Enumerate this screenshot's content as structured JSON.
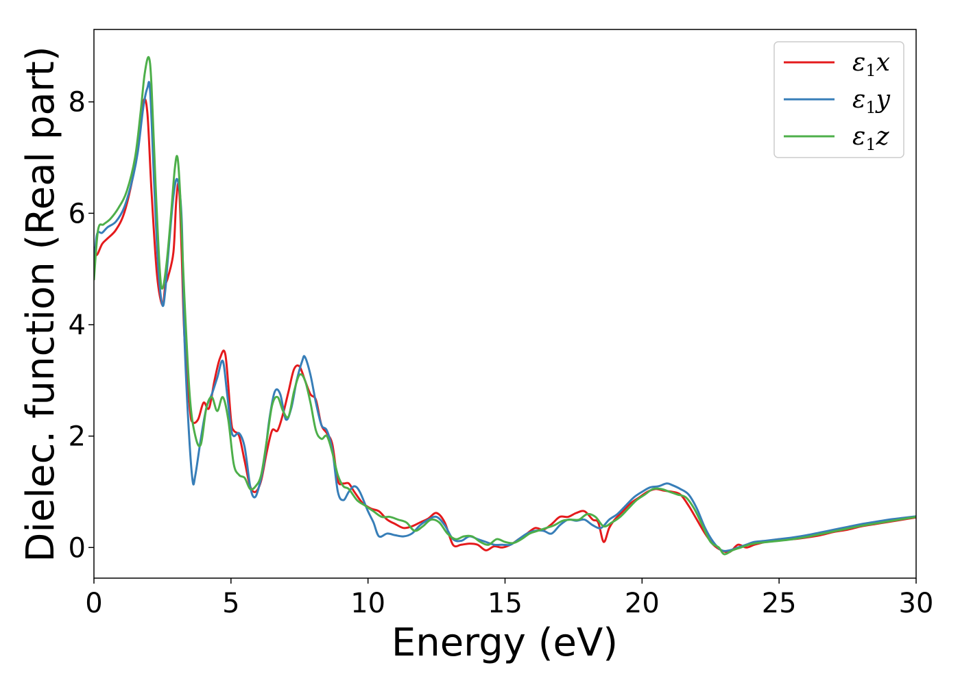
{
  "chart_data": {
    "type": "line",
    "title": "",
    "xlabel": "Energy (eV)",
    "ylabel": "Dielec. function (Real part)",
    "xlim": [
      0,
      30
    ],
    "ylim": [
      -0.55,
      9.3
    ],
    "xticks": [
      0,
      5,
      10,
      15,
      20,
      25,
      30
    ],
    "yticks": [
      0,
      2,
      4,
      6,
      8
    ],
    "grid": false,
    "legend_position": "top-right",
    "series": [
      {
        "name": "ε1x",
        "symbol": "ε",
        "subscript": "1",
        "suffix": "x",
        "color": "#e41a1c",
        "x": [
          0,
          0.1,
          0.3,
          0.5,
          0.8,
          1.1,
          1.4,
          1.6,
          1.8,
          1.95,
          2.1,
          2.3,
          2.5,
          2.6,
          2.7,
          2.9,
          3.0,
          3.1,
          3.2,
          3.3,
          3.5,
          3.6,
          3.8,
          4.0,
          4.2,
          4.4,
          4.6,
          4.8,
          5.0,
          5.1,
          5.3,
          5.5,
          5.7,
          5.9,
          6.1,
          6.3,
          6.5,
          6.7,
          6.9,
          7.1,
          7.3,
          7.5,
          7.7,
          7.9,
          8.1,
          8.3,
          8.5,
          8.7,
          8.9,
          9.1,
          9.3,
          9.5,
          9.8,
          10.1,
          10.4,
          10.7,
          11.0,
          11.3,
          11.6,
          11.9,
          12.2,
          12.5,
          12.8,
          13.1,
          13.4,
          13.7,
          14.0,
          14.3,
          14.6,
          14.9,
          15.2,
          15.5,
          15.8,
          16.1,
          16.4,
          16.7,
          17.0,
          17.3,
          17.6,
          17.9,
          18.2,
          18.4,
          18.6,
          18.8,
          19.0,
          19.3,
          19.6,
          19.9,
          20.2,
          20.5,
          20.8,
          21.1,
          21.4,
          21.7,
          22.0,
          22.3,
          22.6,
          22.9,
          23.2,
          23.5,
          23.8,
          24.1,
          24.5,
          25.0,
          25.5,
          26.0,
          26.5,
          27.0,
          27.5,
          28.0,
          28.5,
          29.0,
          29.5,
          30.0
        ],
        "y": [
          5.4,
          5.25,
          5.45,
          5.55,
          5.7,
          6.0,
          6.6,
          7.2,
          8.0,
          7.8,
          6.4,
          4.9,
          4.35,
          4.7,
          4.85,
          5.3,
          6.2,
          6.5,
          5.3,
          3.8,
          2.5,
          2.25,
          2.3,
          2.6,
          2.5,
          3.0,
          3.4,
          3.45,
          2.3,
          2.1,
          2.0,
          1.55,
          1.1,
          1.0,
          1.2,
          1.7,
          2.1,
          2.1,
          2.4,
          2.8,
          3.2,
          3.25,
          3.0,
          2.75,
          2.65,
          2.2,
          2.05,
          1.85,
          1.2,
          1.15,
          1.15,
          1.0,
          0.8,
          0.7,
          0.65,
          0.5,
          0.42,
          0.35,
          0.38,
          0.45,
          0.52,
          0.62,
          0.45,
          0.05,
          0.05,
          0.07,
          0.05,
          -0.05,
          0.02,
          0.0,
          0.05,
          0.15,
          0.25,
          0.35,
          0.32,
          0.42,
          0.55,
          0.55,
          0.62,
          0.65,
          0.5,
          0.45,
          0.1,
          0.35,
          0.5,
          0.65,
          0.8,
          0.9,
          1.0,
          1.05,
          1.02,
          1.0,
          0.95,
          0.75,
          0.5,
          0.25,
          0.05,
          -0.05,
          -0.08,
          0.05,
          0.0,
          0.05,
          0.1,
          0.15,
          0.15,
          0.18,
          0.22,
          0.28,
          0.32,
          0.38,
          0.42,
          0.46,
          0.5,
          0.54
        ]
      },
      {
        "name": "ε1y",
        "symbol": "ε",
        "subscript": "1",
        "suffix": "y",
        "color": "#377eb8",
        "x": [
          0,
          0.1,
          0.3,
          0.5,
          0.8,
          1.1,
          1.4,
          1.6,
          1.8,
          1.95,
          2.05,
          2.2,
          2.35,
          2.5,
          2.6,
          2.7,
          2.9,
          3.05,
          3.2,
          3.3,
          3.45,
          3.6,
          3.7,
          3.9,
          4.1,
          4.3,
          4.5,
          4.7,
          4.85,
          5.0,
          5.1,
          5.3,
          5.5,
          5.7,
          5.85,
          6.0,
          6.2,
          6.4,
          6.6,
          6.8,
          7.0,
          7.2,
          7.4,
          7.6,
          7.7,
          7.9,
          8.1,
          8.3,
          8.5,
          8.7,
          8.9,
          9.1,
          9.3,
          9.5,
          9.7,
          10.0,
          10.2,
          10.4,
          10.7,
          11.0,
          11.3,
          11.6,
          11.9,
          12.2,
          12.5,
          12.8,
          13.1,
          13.4,
          13.7,
          14.0,
          14.3,
          14.6,
          14.9,
          15.2,
          15.5,
          15.8,
          16.1,
          16.4,
          16.7,
          17.0,
          17.3,
          17.6,
          17.9,
          18.2,
          18.5,
          18.8,
          19.1,
          19.4,
          19.7,
          20.0,
          20.3,
          20.6,
          20.9,
          21.1,
          21.4,
          21.7,
          22.0,
          22.3,
          22.6,
          22.9,
          23.2,
          23.5,
          23.8,
          24.1,
          24.5,
          25.0,
          25.5,
          26.0,
          26.5,
          27.0,
          27.5,
          28.0,
          28.5,
          29.0,
          29.5,
          30.0
        ],
        "y": [
          4.9,
          5.6,
          5.65,
          5.75,
          5.85,
          6.1,
          6.6,
          7.1,
          7.9,
          8.25,
          8.2,
          6.5,
          5.0,
          4.35,
          4.6,
          5.2,
          6.3,
          6.6,
          5.9,
          3.8,
          2.2,
          1.2,
          1.3,
          1.95,
          2.5,
          2.75,
          3.05,
          3.35,
          2.8,
          2.15,
          2.0,
          2.05,
          1.8,
          1.1,
          0.9,
          1.05,
          1.5,
          2.3,
          2.8,
          2.75,
          2.3,
          2.5,
          3.0,
          3.35,
          3.42,
          3.1,
          2.6,
          2.2,
          2.1,
          1.75,
          1.0,
          0.85,
          1.0,
          1.1,
          1.0,
          0.65,
          0.45,
          0.2,
          0.25,
          0.22,
          0.2,
          0.25,
          0.4,
          0.5,
          0.55,
          0.4,
          0.15,
          0.12,
          0.2,
          0.15,
          0.1,
          0.05,
          0.05,
          0.05,
          0.15,
          0.25,
          0.3,
          0.3,
          0.25,
          0.4,
          0.5,
          0.48,
          0.5,
          0.4,
          0.35,
          0.5,
          0.6,
          0.75,
          0.9,
          1.0,
          1.08,
          1.1,
          1.15,
          1.12,
          1.05,
          0.95,
          0.7,
          0.35,
          0.1,
          -0.05,
          -0.05,
          0.0,
          0.05,
          0.1,
          0.12,
          0.15,
          0.18,
          0.22,
          0.27,
          0.32,
          0.37,
          0.42,
          0.46,
          0.5,
          0.53,
          0.56
        ]
      },
      {
        "name": "ε1z",
        "symbol": "ε",
        "subscript": "1",
        "suffix": "z",
        "color": "#4daf4a",
        "x": [
          0,
          0.15,
          0.35,
          0.6,
          0.9,
          1.2,
          1.5,
          1.7,
          1.85,
          2.0,
          2.1,
          2.25,
          2.4,
          2.5,
          2.65,
          2.8,
          2.95,
          3.05,
          3.15,
          3.3,
          3.5,
          3.7,
          3.9,
          4.1,
          4.3,
          4.5,
          4.7,
          4.9,
          5.1,
          5.3,
          5.5,
          5.7,
          5.9,
          6.1,
          6.3,
          6.5,
          6.7,
          6.9,
          7.1,
          7.3,
          7.5,
          7.7,
          7.9,
          8.1,
          8.3,
          8.5,
          8.7,
          8.9,
          9.1,
          9.3,
          9.6,
          9.9,
          10.2,
          10.5,
          10.8,
          11.1,
          11.4,
          11.7,
          12.0,
          12.3,
          12.6,
          12.9,
          13.2,
          13.5,
          13.8,
          14.1,
          14.4,
          14.7,
          15.0,
          15.3,
          15.6,
          15.9,
          16.2,
          16.5,
          16.8,
          17.1,
          17.4,
          17.7,
          18.0,
          18.3,
          18.6,
          18.9,
          19.2,
          19.5,
          19.8,
          20.1,
          20.4,
          20.7,
          21.0,
          21.3,
          21.6,
          21.9,
          22.2,
          22.5,
          22.8,
          23.0,
          23.3,
          23.6,
          23.9,
          24.2,
          24.6,
          25.0,
          25.5,
          26.0,
          26.5,
          27.0,
          27.5,
          28.0,
          28.5,
          29.0,
          29.5,
          30.0
        ],
        "y": [
          4.8,
          5.7,
          5.8,
          5.9,
          6.1,
          6.4,
          7.0,
          7.8,
          8.5,
          8.8,
          8.3,
          6.5,
          5.0,
          4.65,
          5.1,
          5.9,
          6.8,
          7.0,
          6.3,
          4.5,
          2.7,
          2.0,
          1.85,
          2.5,
          2.7,
          2.45,
          2.7,
          2.3,
          1.5,
          1.3,
          1.25,
          1.05,
          1.1,
          1.3,
          1.9,
          2.55,
          2.7,
          2.45,
          2.35,
          2.8,
          3.1,
          3.0,
          2.6,
          2.1,
          1.95,
          2.0,
          1.7,
          1.3,
          1.1,
          1.05,
          0.85,
          0.75,
          0.65,
          0.55,
          0.55,
          0.5,
          0.45,
          0.3,
          0.38,
          0.5,
          0.45,
          0.25,
          0.15,
          0.2,
          0.2,
          0.1,
          0.05,
          0.15,
          0.1,
          0.08,
          0.15,
          0.25,
          0.3,
          0.35,
          0.4,
          0.48,
          0.5,
          0.5,
          0.6,
          0.55,
          0.38,
          0.45,
          0.55,
          0.7,
          0.85,
          0.95,
          1.05,
          1.05,
          1.0,
          0.95,
          0.9,
          0.7,
          0.4,
          0.1,
          0.0,
          -0.12,
          -0.05,
          0.0,
          0.05,
          0.08,
          0.1,
          0.12,
          0.15,
          0.19,
          0.24,
          0.29,
          0.34,
          0.39,
          0.43,
          0.47,
          0.51,
          0.55
        ]
      }
    ]
  }
}
